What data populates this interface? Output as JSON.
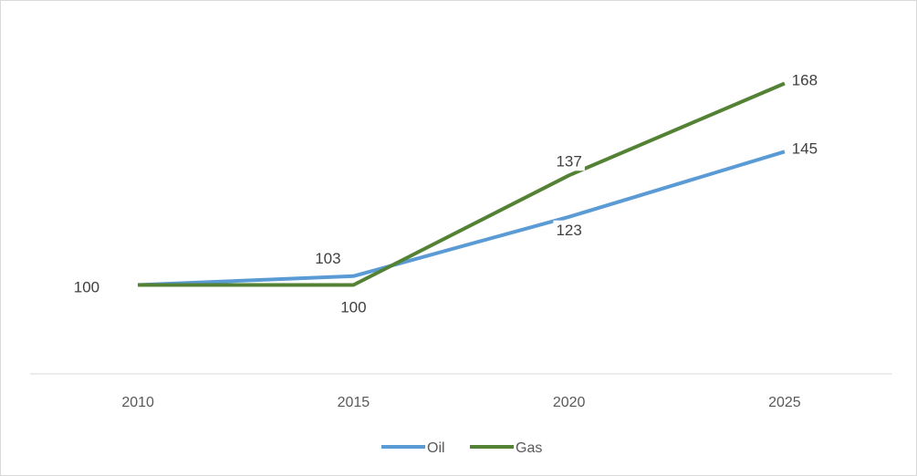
{
  "chart_data": {
    "type": "line",
    "x": [
      "2010",
      "2015",
      "2020",
      "2025"
    ],
    "series": [
      {
        "name": "Oil",
        "values": [
          100,
          103,
          123,
          145
        ],
        "color": "#5b9bd5"
      },
      {
        "name": "Gas",
        "values": [
          100,
          100,
          137,
          168
        ],
        "color": "#548235"
      }
    ],
    "data_labels": {
      "Oil": [
        "100",
        "103",
        "123",
        "145"
      ],
      "Gas": [
        "",
        "100",
        "137",
        "168"
      ]
    },
    "ylim": [
      70,
      190
    ],
    "grid": false,
    "legend_position": "bottom"
  }
}
